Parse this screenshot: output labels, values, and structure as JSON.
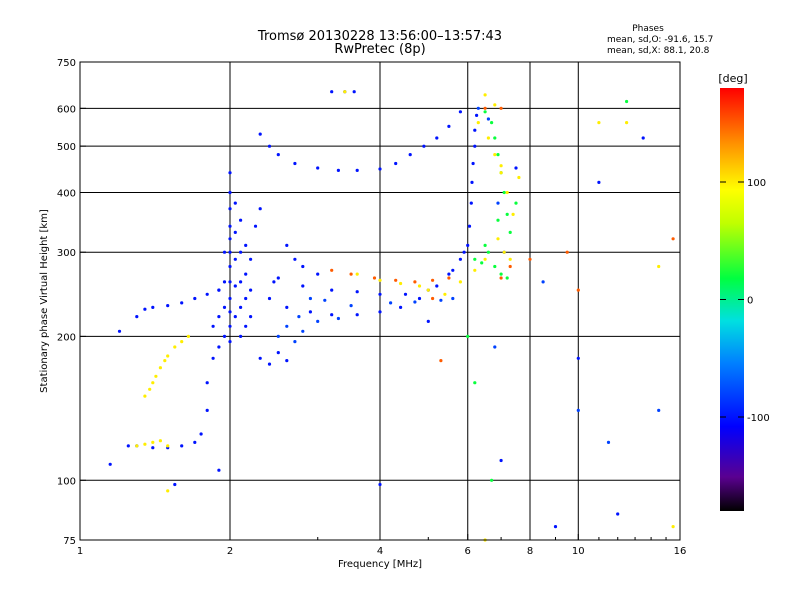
{
  "chart_data": {
    "type": "scatter",
    "title": "Tromsø 20130228 13:56:00–13:57:43",
    "subtitle": "RwPretec (8p)",
    "xlabel": "Frequency [MHz]",
    "ylabel": "Stationary phase Virtual Height [km]",
    "x_scale": "log",
    "y_scale": "log",
    "xlim": [
      1,
      16
    ],
    "ylim": [
      75,
      750
    ],
    "x_ticks": [
      1,
      2,
      4,
      6,
      8,
      10,
      16
    ],
    "x_tick_labels": [
      "1",
      "2",
      "4",
      "6",
      "8",
      "10",
      "16"
    ],
    "y_ticks": [
      75,
      100,
      200,
      300,
      400,
      500,
      600,
      750
    ],
    "y_tick_labels": [
      "75",
      "100",
      "200",
      "300",
      "400",
      "500",
      "600",
      "750"
    ],
    "grid": true,
    "stats": {
      "heading": "Phases",
      "line_o": "mean, sd,O: -91.6, 15.7",
      "line_x": "mean, sd,X:  88.1, 20.8"
    },
    "colorbar": {
      "label": "[deg]",
      "range": [
        -180,
        180
      ],
      "tick_values": [
        100,
        0,
        -100
      ],
      "tick_labels": [
        "100",
        "0",
        "-100"
      ]
    },
    "series": [
      {
        "phase": -100,
        "points": [
          [
            2.0,
            440
          ],
          [
            2.0,
            400
          ],
          [
            2.0,
            370
          ],
          [
            2.0,
            340
          ],
          [
            2.0,
            320
          ],
          [
            2.0,
            300
          ],
          [
            2.0,
            280
          ],
          [
            2.0,
            260
          ],
          [
            2.0,
            240
          ],
          [
            2.0,
            225
          ],
          [
            2.0,
            210
          ],
          [
            2.0,
            195
          ],
          [
            2.05,
            380
          ],
          [
            2.05,
            330
          ],
          [
            2.05,
            290
          ],
          [
            2.05,
            255
          ],
          [
            2.05,
            220
          ],
          [
            2.1,
            350
          ],
          [
            2.1,
            300
          ],
          [
            2.1,
            260
          ],
          [
            2.1,
            230
          ],
          [
            2.1,
            200
          ],
          [
            2.15,
            310
          ],
          [
            2.15,
            270
          ],
          [
            2.15,
            240
          ],
          [
            2.15,
            210
          ],
          [
            2.2,
            290
          ],
          [
            2.2,
            250
          ],
          [
            2.2,
            220
          ],
          [
            1.95,
            300
          ],
          [
            1.95,
            260
          ],
          [
            1.95,
            230
          ],
          [
            1.95,
            200
          ],
          [
            1.9,
            250
          ],
          [
            1.9,
            220
          ],
          [
            1.9,
            190
          ],
          [
            1.85,
            210
          ],
          [
            1.85,
            180
          ],
          [
            1.8,
            160
          ],
          [
            1.8,
            140
          ],
          [
            1.75,
            125
          ],
          [
            1.7,
            120
          ],
          [
            1.6,
            118
          ],
          [
            1.5,
            117
          ],
          [
            1.4,
            117
          ],
          [
            1.3,
            118
          ],
          [
            1.25,
            118
          ],
          [
            1.6,
            235
          ],
          [
            1.7,
            240
          ],
          [
            1.8,
            245
          ],
          [
            1.9,
            250
          ],
          [
            1.5,
            232
          ],
          [
            1.4,
            230
          ],
          [
            1.3,
            220
          ],
          [
            1.2,
            205
          ],
          [
            1.35,
            228
          ],
          [
            2.3,
            530
          ],
          [
            2.4,
            500
          ],
          [
            2.5,
            480
          ],
          [
            2.7,
            460
          ],
          [
            3.0,
            450
          ],
          [
            3.3,
            445
          ],
          [
            3.6,
            445
          ],
          [
            4.0,
            448
          ],
          [
            4.3,
            460
          ],
          [
            4.6,
            480
          ],
          [
            4.9,
            500
          ],
          [
            5.2,
            520
          ],
          [
            5.5,
            550
          ],
          [
            5.8,
            590
          ],
          [
            3.2,
            650
          ],
          [
            3.4,
            650
          ],
          [
            3.55,
            650
          ],
          [
            2.4,
            240
          ],
          [
            2.6,
            230
          ],
          [
            2.9,
            225
          ],
          [
            3.2,
            222
          ],
          [
            3.6,
            222
          ],
          [
            4.0,
            225
          ],
          [
            4.4,
            230
          ],
          [
            4.8,
            240
          ],
          [
            5.2,
            255
          ],
          [
            5.6,
            275
          ],
          [
            5.9,
            300
          ],
          [
            6.05,
            340
          ],
          [
            6.1,
            380
          ],
          [
            6.12,
            420
          ],
          [
            6.15,
            460
          ],
          [
            6.2,
            500
          ],
          [
            6.2,
            540
          ],
          [
            6.25,
            580
          ],
          [
            2.5,
            265
          ],
          [
            2.8,
            255
          ],
          [
            3.2,
            250
          ],
          [
            3.6,
            248
          ],
          [
            4.0,
            245
          ],
          [
            4.5,
            245
          ],
          [
            5.0,
            250
          ],
          [
            5.5,
            270
          ],
          [
            5.8,
            290
          ],
          [
            6.0,
            310
          ],
          [
            2.3,
            180
          ],
          [
            2.4,
            175
          ],
          [
            2.5,
            185
          ],
          [
            2.6,
            178
          ],
          [
            1.15,
            108
          ],
          [
            1.9,
            105
          ],
          [
            1.55,
            98
          ],
          [
            2.45,
            260
          ],
          [
            2.25,
            340
          ],
          [
            2.3,
            370
          ],
          [
            2.6,
            310
          ],
          [
            2.7,
            290
          ],
          [
            2.8,
            280
          ],
          [
            3.0,
            270
          ],
          [
            5.0,
            215
          ],
          [
            7.5,
            450
          ],
          [
            9.0,
            80
          ],
          [
            10.0,
            180
          ],
          [
            11.0,
            420
          ],
          [
            4.0,
            98
          ],
          [
            7.0,
            110
          ],
          [
            13.5,
            520
          ],
          [
            12.0,
            85
          ]
        ]
      },
      {
        "phase": -80,
        "points": [
          [
            2.6,
            210
          ],
          [
            2.8,
            205
          ],
          [
            3.0,
            215
          ],
          [
            3.3,
            218
          ],
          [
            2.9,
            240
          ],
          [
            3.1,
            238
          ],
          [
            3.5,
            232
          ],
          [
            4.2,
            235
          ],
          [
            4.7,
            236
          ],
          [
            5.3,
            238
          ],
          [
            5.6,
            240
          ],
          [
            6.3,
            600
          ],
          [
            6.6,
            570
          ],
          [
            6.9,
            380
          ],
          [
            7.1,
            300
          ],
          [
            2.5,
            200
          ],
          [
            2.7,
            195
          ],
          [
            2.75,
            220
          ],
          [
            8.5,
            260
          ],
          [
            10.0,
            140
          ],
          [
            11.5,
            120
          ],
          [
            14.5,
            140
          ],
          [
            6.8,
            190
          ]
        ]
      },
      {
        "phase": 20,
        "points": [
          [
            6.5,
            590
          ],
          [
            6.7,
            560
          ],
          [
            6.8,
            520
          ],
          [
            6.9,
            480
          ],
          [
            7.0,
            440
          ],
          [
            7.1,
            400
          ],
          [
            7.2,
            360
          ],
          [
            7.3,
            330
          ],
          [
            6.6,
            300
          ],
          [
            6.8,
            280
          ],
          [
            7.0,
            270
          ],
          [
            7.2,
            265
          ],
          [
            6.2,
            290
          ],
          [
            6.4,
            285
          ],
          [
            6.5,
            310
          ],
          [
            6.9,
            350
          ],
          [
            7.5,
            380
          ],
          [
            12.5,
            620
          ],
          [
            6.0,
            200
          ],
          [
            6.2,
            160
          ],
          [
            6.7,
            100
          ]
        ]
      },
      {
        "phase": 100,
        "points": [
          [
            1.35,
            150
          ],
          [
            1.38,
            155
          ],
          [
            1.4,
            160
          ],
          [
            1.42,
            165
          ],
          [
            1.45,
            172
          ],
          [
            1.48,
            178
          ],
          [
            1.5,
            182
          ],
          [
            1.55,
            190
          ],
          [
            1.6,
            195
          ],
          [
            1.65,
            200
          ],
          [
            1.3,
            118
          ],
          [
            1.35,
            119
          ],
          [
            1.4,
            120
          ],
          [
            1.45,
            121
          ],
          [
            1.5,
            118
          ],
          [
            6.3,
            560
          ],
          [
            6.6,
            520
          ],
          [
            6.8,
            480
          ],
          [
            7.0,
            440
          ],
          [
            7.2,
            400
          ],
          [
            7.4,
            360
          ],
          [
            6.9,
            320
          ],
          [
            7.1,
            300
          ],
          [
            7.3,
            290
          ],
          [
            3.6,
            270
          ],
          [
            4.0,
            262
          ],
          [
            4.4,
            258
          ],
          [
            4.8,
            255
          ],
          [
            5.0,
            250
          ],
          [
            5.4,
            245
          ],
          [
            5.8,
            260
          ],
          [
            6.2,
            275
          ],
          [
            6.5,
            290
          ],
          [
            3.4,
            650
          ],
          [
            6.5,
            640
          ],
          [
            6.8,
            610
          ],
          [
            7.0,
            455
          ],
          [
            7.6,
            430
          ],
          [
            11.0,
            560
          ],
          [
            12.5,
            560
          ],
          [
            14.5,
            280
          ],
          [
            15.5,
            80
          ],
          [
            6.5,
            75
          ],
          [
            1.5,
            95
          ]
        ]
      },
      {
        "phase": 150,
        "points": [
          [
            3.2,
            275
          ],
          [
            3.5,
            270
          ],
          [
            3.9,
            265
          ],
          [
            4.3,
            262
          ],
          [
            4.7,
            260
          ],
          [
            5.1,
            262
          ],
          [
            5.5,
            265
          ],
          [
            7.0,
            265
          ],
          [
            7.3,
            280
          ],
          [
            6.5,
            600
          ],
          [
            7.0,
            600
          ],
          [
            8.0,
            290
          ],
          [
            9.5,
            300
          ],
          [
            10.0,
            250
          ],
          [
            15.5,
            320
          ],
          [
            5.1,
            240
          ],
          [
            5.3,
            178
          ]
        ]
      }
    ]
  }
}
